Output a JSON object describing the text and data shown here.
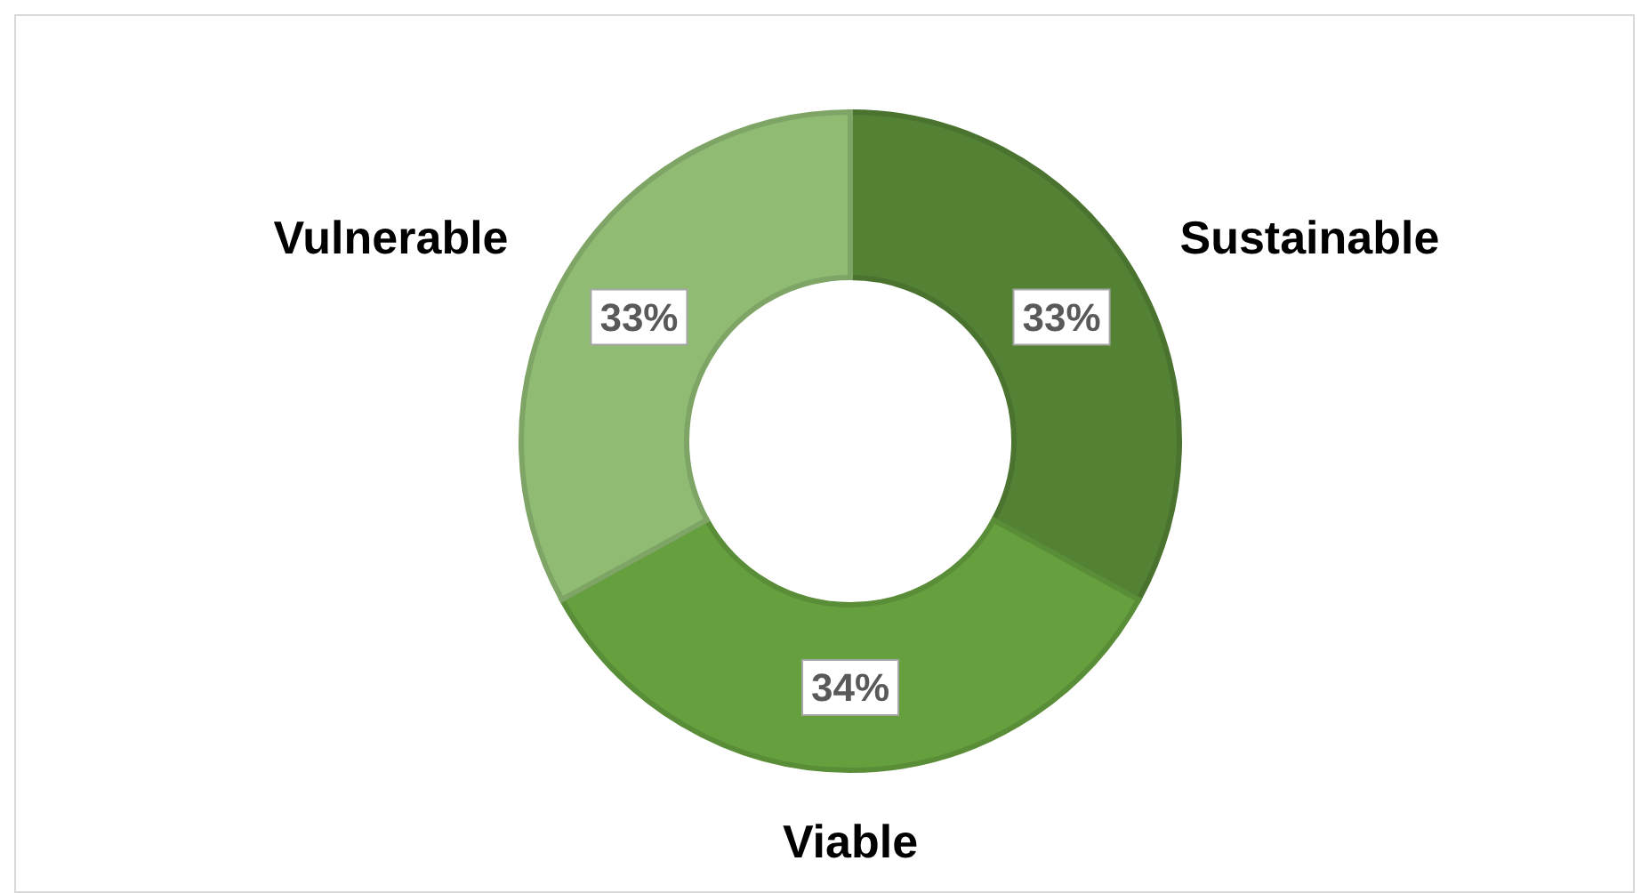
{
  "chart_data": {
    "type": "donut",
    "categories": [
      "Sustainable",
      "Viable",
      "Vulnerable"
    ],
    "values": [
      33,
      34,
      33
    ],
    "colors": [
      "#548235",
      "#66a03e",
      "#8fbb72"
    ],
    "value_labels": [
      "33%",
      "34%",
      "33%"
    ],
    "legend": false
  }
}
